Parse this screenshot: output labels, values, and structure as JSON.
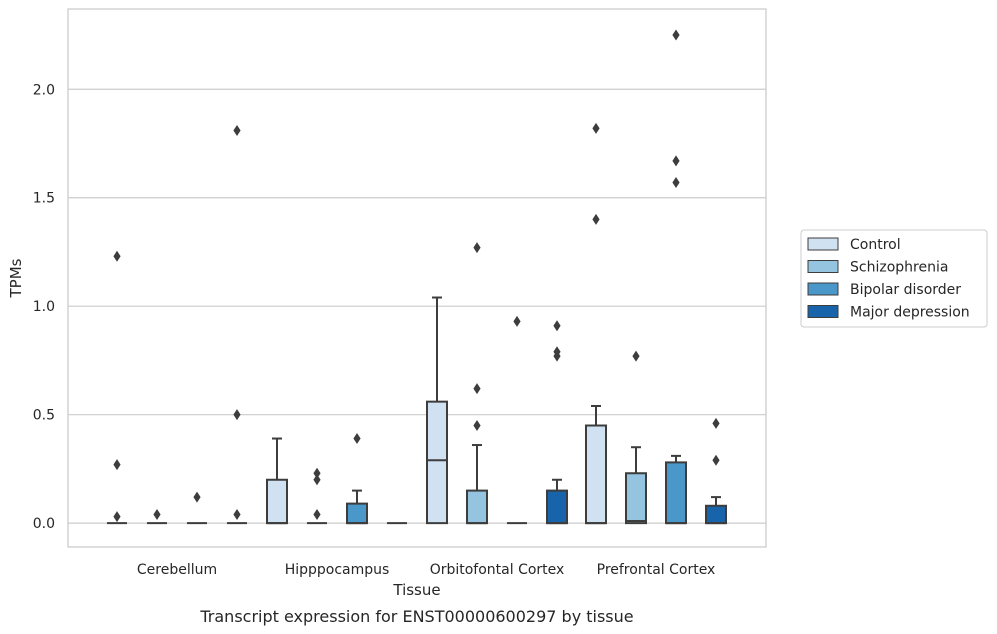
{
  "chart_data": {
    "type": "box",
    "title": "",
    "caption": "Transcript expression for ENST00000600297 by tissue",
    "xlabel": "Tissue",
    "ylabel": "TPMs",
    "ylim": [
      -0.11,
      2.37
    ],
    "yticks": [
      0.0,
      0.5,
      1.0,
      1.5,
      2.0
    ],
    "ytick_labels": [
      "0.0",
      "0.5",
      "1.0",
      "1.5",
      "2.0"
    ],
    "grid": "horizontal",
    "legend_position": "right",
    "categories": [
      "Cerebellum",
      "Hipppocampus",
      "Orbitofontal Cortex",
      "Prefrontal Cortex"
    ],
    "series": [
      {
        "name": "Control",
        "color": "#d0e1f2",
        "boxes": [
          {
            "q1": 0,
            "median": 0,
            "q3": 0,
            "whisker_low": 0,
            "whisker_high": 0,
            "outliers": [
              0.03,
              0.27,
              1.23
            ]
          },
          {
            "q1": 0,
            "median": 0,
            "q3": 0.2,
            "whisker_low": 0,
            "whisker_high": 0.39,
            "outliers": []
          },
          {
            "q1": 0,
            "median": 0.29,
            "q3": 0.56,
            "whisker_low": 0,
            "whisker_high": 1.04,
            "outliers": []
          },
          {
            "q1": 0,
            "median": 0,
            "q3": 0.45,
            "whisker_low": 0,
            "whisker_high": 0.54,
            "outliers": [
              1.4,
              1.82
            ]
          }
        ]
      },
      {
        "name": "Schizophrenia",
        "color": "#94c4df",
        "boxes": [
          {
            "q1": 0,
            "median": 0,
            "q3": 0,
            "whisker_low": 0,
            "whisker_high": 0,
            "outliers": [
              0.04
            ]
          },
          {
            "q1": 0,
            "median": 0,
            "q3": 0,
            "whisker_low": 0,
            "whisker_high": 0,
            "outliers": [
              0.04,
              0.2,
              0.23
            ]
          },
          {
            "q1": 0,
            "median": 0,
            "q3": 0.15,
            "whisker_low": 0,
            "whisker_high": 0.36,
            "outliers": [
              0.45,
              0.62,
              1.27
            ]
          },
          {
            "q1": 0,
            "median": 0.01,
            "q3": 0.23,
            "whisker_low": 0,
            "whisker_high": 0.35,
            "outliers": [
              0.77
            ]
          }
        ]
      },
      {
        "name": "Bipolar disorder",
        "color": "#4a98c9",
        "boxes": [
          {
            "q1": 0,
            "median": 0,
            "q3": 0,
            "whisker_low": 0,
            "whisker_high": 0,
            "outliers": [
              0.12
            ]
          },
          {
            "q1": 0,
            "median": 0,
            "q3": 0.09,
            "whisker_low": 0,
            "whisker_high": 0.15,
            "outliers": [
              0.39
            ]
          },
          {
            "q1": 0,
            "median": 0,
            "q3": 0,
            "whisker_low": 0,
            "whisker_high": 0,
            "outliers": [
              0.93
            ]
          },
          {
            "q1": 0,
            "median": 0,
            "q3": 0.28,
            "whisker_low": 0,
            "whisker_high": 0.31,
            "outliers": [
              1.57,
              1.67,
              2.25
            ]
          }
        ]
      },
      {
        "name": "Major depression",
        "color": "#1764ab",
        "boxes": [
          {
            "q1": 0,
            "median": 0,
            "q3": 0,
            "whisker_low": 0,
            "whisker_high": 0,
            "outliers": [
              0.04,
              0.5,
              1.81
            ]
          },
          {
            "q1": 0,
            "median": 0,
            "q3": 0,
            "whisker_low": 0,
            "whisker_high": 0,
            "outliers": []
          },
          {
            "q1": 0,
            "median": 0,
            "q3": 0.15,
            "whisker_low": 0,
            "whisker_high": 0.2,
            "outliers": [
              0.77,
              0.79,
              0.91
            ]
          },
          {
            "q1": 0,
            "median": 0,
            "q3": 0.08,
            "whisker_low": 0,
            "whisker_high": 0.12,
            "outliers": [
              0.29,
              0.46
            ]
          }
        ]
      }
    ]
  }
}
